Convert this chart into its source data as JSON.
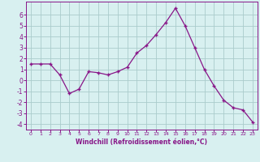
{
  "x": [
    0,
    1,
    2,
    3,
    4,
    5,
    6,
    7,
    8,
    9,
    10,
    11,
    12,
    13,
    14,
    15,
    16,
    17,
    18,
    19,
    20,
    21,
    22,
    23
  ],
  "y": [
    1.5,
    1.5,
    1.5,
    0.5,
    -1.2,
    -0.8,
    0.8,
    0.7,
    0.5,
    0.8,
    1.2,
    2.5,
    3.2,
    4.2,
    5.3,
    6.6,
    5.0,
    3.0,
    1.0,
    -0.5,
    -1.8,
    -2.5,
    -2.7,
    -3.8
  ],
  "line_color": "#881688",
  "marker": "+",
  "marker_size": 3.5,
  "bg_color": "#d8f0f0",
  "grid_color": "#aacccc",
  "axis_color": "#881688",
  "tick_color": "#881688",
  "xlabel": "Windchill (Refroidissement éolien,°C)",
  "ylim": [
    -4.5,
    7.2
  ],
  "xlim": [
    -0.5,
    23.5
  ],
  "yticks": [
    -4,
    -3,
    -2,
    -1,
    0,
    1,
    2,
    3,
    4,
    5,
    6
  ],
  "xticks": [
    0,
    1,
    2,
    3,
    4,
    5,
    6,
    7,
    8,
    9,
    10,
    11,
    12,
    13,
    14,
    15,
    16,
    17,
    18,
    19,
    20,
    21,
    22,
    23
  ]
}
